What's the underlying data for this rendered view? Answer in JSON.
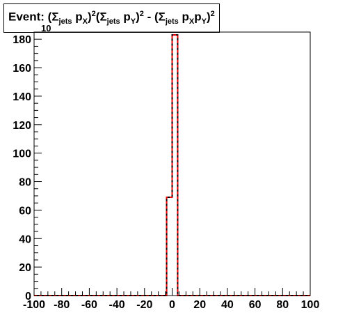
{
  "title": {
    "prefix": "Event: (",
    "sigma1": "Σ",
    "sub1": "jets",
    "p1": " p",
    "subx1": "X",
    "close1": ")",
    "sup1": "2",
    "open2": "(",
    "sigma2": "Σ",
    "sub2": "jets",
    "p2": " p",
    "suby2": "Y",
    "close2": ")",
    "sup2": "2",
    "minus": " - (",
    "sigma3": "Σ",
    "sub3": "jets",
    "p3": " p",
    "subx3": "X",
    "p4": "p",
    "suby3": "Y",
    "close3": ")",
    "sup3": "2"
  },
  "exponent_label": "10",
  "colors": {
    "hist_line": "#000000",
    "overlay_line": "#ff0000",
    "frame": "#000000"
  },
  "chart_data": {
    "type": "bar",
    "style": "step-histogram",
    "xlim": [
      -100,
      100
    ],
    "ylim": [
      0,
      185
    ],
    "xticks": [
      -100,
      -80,
      -60,
      -40,
      -20,
      0,
      20,
      40,
      60,
      80,
      100
    ],
    "yticks": [
      0,
      20,
      40,
      60,
      80,
      100,
      120,
      140,
      160,
      180
    ],
    "bin_width": 4,
    "bins_nonzero": [
      {
        "x_low": -4,
        "x_high": 0,
        "value": 69
      },
      {
        "x_low": 0,
        "x_high": 4,
        "value": 183
      }
    ],
    "overlay": "dashed red outline identical to histogram",
    "grid": false
  }
}
